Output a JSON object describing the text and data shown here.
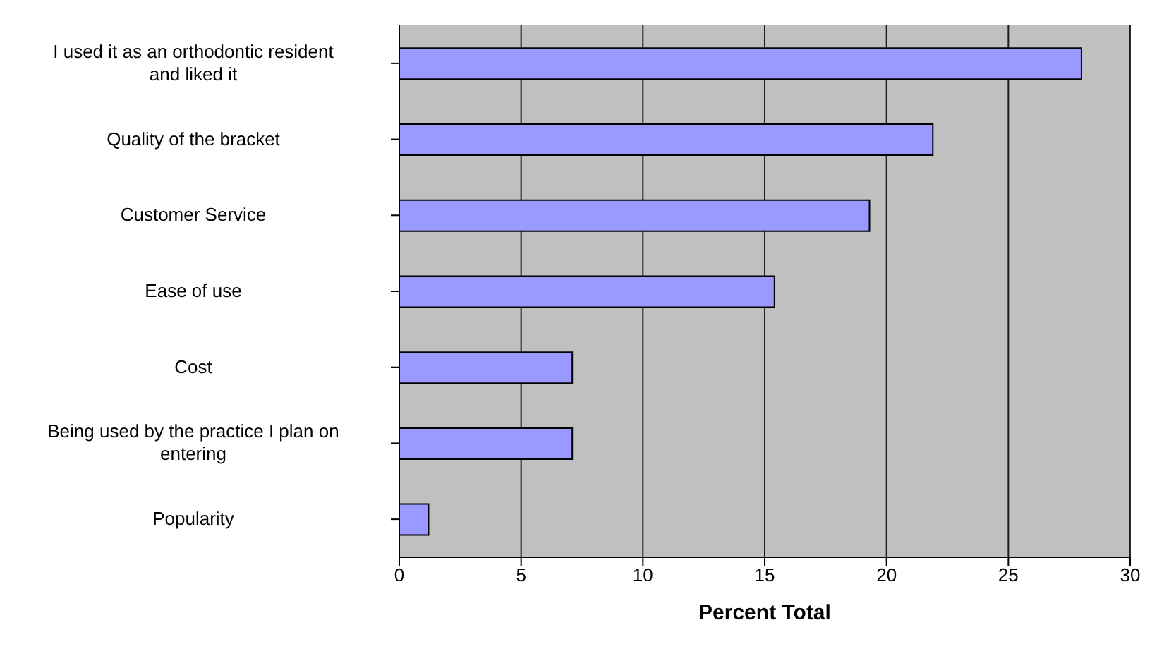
{
  "chart_data": {
    "type": "bar",
    "orientation": "horizontal",
    "xlabel": "Percent Total",
    "categories": [
      "I used it as an orthodontic resident and liked it",
      "Quality of the bracket",
      "Customer Service",
      "Ease of use",
      "Cost",
      "Being used by the practice I plan on entering",
      "Popularity"
    ],
    "values": [
      28,
      21.9,
      19.3,
      15.4,
      7.1,
      7.1,
      1.2
    ],
    "color": "#9999ff",
    "xlim": [
      0,
      30
    ],
    "xticks": [
      0,
      5,
      10,
      15,
      20,
      25,
      30
    ],
    "grid": "x"
  }
}
